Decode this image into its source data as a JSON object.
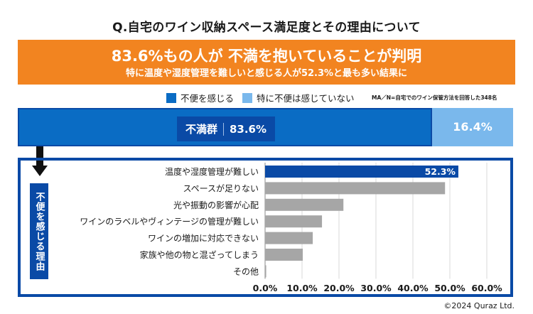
{
  "title": "Q.自宅のワイン収納スペース満足度とその理由について",
  "banner": {
    "headline": "83.6%もの人が 不満を抱いていることが判明",
    "subline": "特に温度や湿度管理を難しいと感じる人が52.3%と最も多い結果に",
    "color": "#f28420"
  },
  "legend": {
    "items": [
      {
        "label": "不便を感じる",
        "color": "#0a6cc4"
      },
      {
        "label": "特に不便は感じていない",
        "color": "#7ab8ec"
      }
    ],
    "note": "MA／N=自宅でのワイン保管方法を回答した348名"
  },
  "stacked": {
    "group_label": "不満群",
    "segments": [
      {
        "name": "不便を感じる",
        "value": 83.6,
        "label": "83.6%",
        "color": "#0a6cc4"
      },
      {
        "name": "特に不便は感じていない",
        "value": 16.4,
        "label": "16.4%",
        "color": "#7ab8ec"
      }
    ]
  },
  "reason_label": "不便を感じる理由",
  "chart_data": {
    "type": "bar",
    "orientation": "horizontal",
    "title": "不便を感じる理由",
    "categories": [
      "温度や湿度管理が難しい",
      "スペースが足りない",
      "光や振動の影響が心配",
      "ワインのラベルやヴィンテージの管理が難しい",
      "ワインの増加に対応できない",
      "家族や他の物と混ざってしまう",
      "その他"
    ],
    "values": [
      52.3,
      48.7,
      21.2,
      15.4,
      12.9,
      10.2,
      0.3
    ],
    "data_labels": [
      "52.3%",
      null,
      null,
      null,
      null,
      null,
      null
    ],
    "highlight_index": 0,
    "highlight_color": "#0a4aa6",
    "bar_color": "#a6a6a6",
    "xlim": [
      0,
      60
    ],
    "xticks": [
      "0.0%",
      "10.0%",
      "20.0%",
      "30.0%",
      "40.0%",
      "50.0%",
      "60.0%"
    ],
    "grid": true
  },
  "copyright": "©2024 Quraz Ltd."
}
